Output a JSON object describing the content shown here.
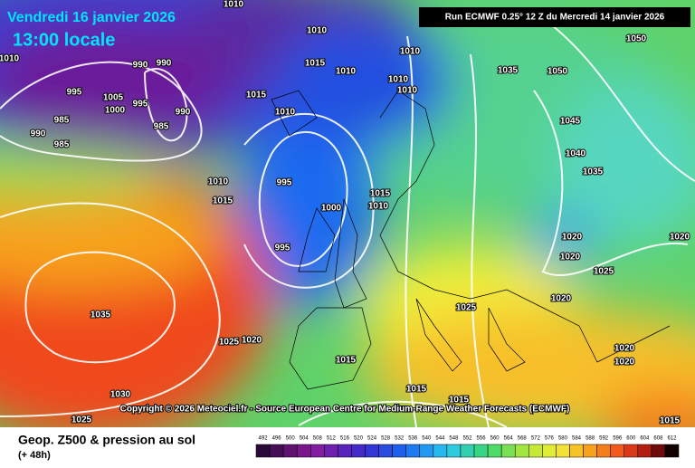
{
  "header": {
    "date": "Vendredi 16 janvier 2026",
    "time": "13:00 locale",
    "run": "Run ECMWF 0.25° 12 Z du Mercredi 14 janvier 2026"
  },
  "copyright": "Copyright © 2026 Meteociel.fr - Source European Centre for Medium-Range Weather Forecasts (ECMWF)",
  "footer": {
    "title": "Geop. Z500 & pression au sol",
    "lead": "(+ 48h)"
  },
  "scale": [
    492,
    496,
    500,
    504,
    508,
    512,
    516,
    520,
    524,
    528,
    532,
    536,
    540,
    544,
    548,
    552,
    556,
    560,
    564,
    568,
    572,
    576,
    580,
    584,
    588,
    592,
    596,
    600,
    604,
    608,
    612
  ],
  "map": {
    "isobar_labels": [
      1010,
      1010,
      990,
      990,
      995,
      1005,
      1000,
      995,
      985,
      990,
      985,
      985,
      990,
      1010,
      1015,
      1010,
      1015,
      1010,
      1010,
      1010,
      1010,
      1035,
      1050,
      1050,
      1045,
      1040,
      1035,
      995,
      1000,
      995,
      1010,
      1015,
      1015,
      1010,
      1020,
      1020,
      1025,
      1020,
      1025,
      1035,
      1025,
      1020,
      1015,
      1030,
      1025,
      1015,
      1015,
      1020,
      1020,
      1020,
      1015
    ]
  }
}
